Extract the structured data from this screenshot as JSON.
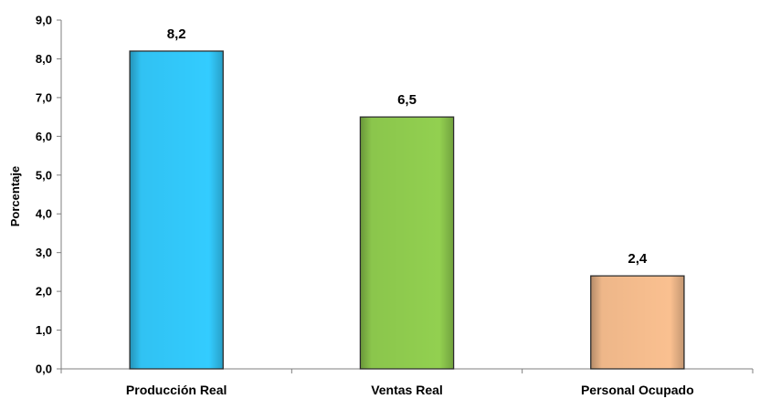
{
  "chart_data": {
    "type": "bar",
    "categories": [
      "Producción Real",
      "Ventas Real",
      "Personal Ocupado"
    ],
    "values": [
      8.2,
      6.5,
      2.4
    ],
    "data_labels": [
      "8,2",
      "6,5",
      "2,4"
    ],
    "colors": [
      "#33ccff",
      "#92d050",
      "#fac090"
    ],
    "title": "",
    "xlabel": "",
    "ylabel": "Porcentaje",
    "ylim": [
      0,
      9
    ],
    "y_ticks": [
      0,
      1,
      2,
      3,
      4,
      5,
      6,
      7,
      8,
      9
    ],
    "y_tick_labels": [
      "0,0",
      "1,0",
      "2,0",
      "3,0",
      "4,0",
      "5,0",
      "6,0",
      "7,0",
      "8,0",
      "9,0"
    ],
    "grid": false,
    "legend": "none"
  }
}
